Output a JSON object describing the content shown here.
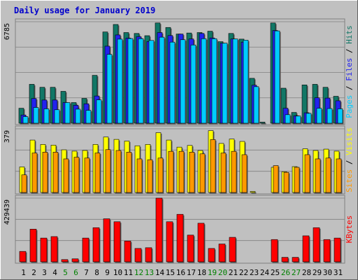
{
  "chart_data": {
    "title": "Daily usage for January 2019",
    "days": [
      "1",
      "2",
      "3",
      "4",
      "5",
      "6",
      "7",
      "8",
      "9",
      "10",
      "11",
      "12",
      "13",
      "14",
      "15",
      "16",
      "17",
      "18",
      "19",
      "20",
      "21",
      "22",
      "23",
      "24",
      "25",
      "26",
      "27",
      "28",
      "29",
      "30",
      "31"
    ],
    "weekend_days": [
      "5",
      "6",
      "12",
      "13",
      "19",
      "20",
      "26",
      "27"
    ],
    "panels": [
      {
        "type": "bar",
        "ytick": "6785",
        "ymax": 6785,
        "series": [
          {
            "name": "Pages",
            "color": "#00ccff",
            "values": [
              440,
              1050,
              960,
              900,
              1380,
              940,
              860,
              1560,
              4600,
              5620,
              5660,
              5650,
              5530,
              5750,
              5420,
              5580,
              5230,
              5650,
              5650,
              5350,
              5630,
              5550,
              2440,
              0,
              6170,
              570,
              480,
              660,
              1000,
              980,
              960
            ]
          },
          {
            "name": "Files",
            "color": "#2222ee",
            "values": [
              550,
              1650,
              1550,
              1550,
              1380,
              1200,
              1300,
              1820,
              5150,
              5900,
              5690,
              5780,
              5460,
              6060,
              5860,
              5960,
              5630,
              6000,
              5700,
              5350,
              5630,
              5420,
              2540,
              0,
              6200,
              1000,
              500,
              700,
              1700,
              1680,
              1500
            ]
          },
          {
            "name": "Hits",
            "color": "#117766",
            "values": [
              1000,
              2600,
              2400,
              2400,
              2130,
              1380,
              1660,
              3200,
              6100,
              6600,
              6060,
              6000,
              5850,
              6700,
              6400,
              5960,
              6030,
              6060,
              6150,
              5450,
              6000,
              5620,
              3000,
              30,
              6700,
              2340,
              720,
              2560,
              2600,
              2400,
              1800
            ]
          }
        ]
      },
      {
        "type": "bar",
        "ytick": "379",
        "ymax": 379,
        "series": [
          {
            "name": "Sites",
            "color": "#ff9900",
            "values": [
              105,
              235,
              240,
              240,
              200,
              210,
              205,
              235,
              255,
              250,
              240,
              200,
              195,
              205,
              245,
              245,
              240,
              230,
              315,
              235,
              245,
              225,
              0,
              0,
              160,
              120,
              150,
              225,
              200,
              205,
              200
            ]
          },
          {
            "name": "Visits",
            "color": "#ffff00",
            "values": [
              152,
              312,
              286,
              282,
              254,
              246,
              250,
              286,
              330,
              316,
              306,
              278,
              286,
              356,
              312,
              270,
              280,
              250,
              368,
              292,
              318,
              304,
              5,
              0,
              150,
              124,
              154,
              260,
              250,
              258,
              246
            ]
          }
        ]
      },
      {
        "type": "bar",
        "ytick": "429439",
        "ymax": 429439,
        "series": [
          {
            "name": "KBytes",
            "color": "#ff0000",
            "values": [
              70000,
              220000,
              160000,
              170000,
              15000,
              20000,
              160000,
              230000,
              290000,
              270000,
              140000,
              90000,
              95000,
              429439,
              270000,
              320000,
              180000,
              260000,
              90000,
              120000,
              165000,
              0,
              0,
              0,
              150000,
              30000,
              30000,
              175000,
              230000,
              150000,
              160000
            ]
          }
        ]
      }
    ],
    "right_labels": [
      {
        "parts": [
          {
            "text": "Pages",
            "color": "#00ccff"
          },
          {
            "text": " / ",
            "color": "#000000"
          },
          {
            "text": "Files",
            "color": "#2222ee"
          },
          {
            "text": " / ",
            "color": "#000000"
          },
          {
            "text": "Hits",
            "color": "#117766"
          }
        ]
      },
      {
        "parts": [
          {
            "text": "Sites",
            "color": "#ff9900"
          },
          {
            "text": " / ",
            "color": "#000000"
          },
          {
            "text": "Visits",
            "color": "#ffff00"
          }
        ]
      },
      {
        "parts": [
          {
            "text": "KBytes",
            "color": "#ff0000"
          }
        ]
      }
    ],
    "colors": {
      "background": "#c0c0c0",
      "plot_background": "#c0c0c0",
      "gridline": "#808080",
      "weekday_label": "#000000",
      "weekend_label": "#008000"
    }
  }
}
